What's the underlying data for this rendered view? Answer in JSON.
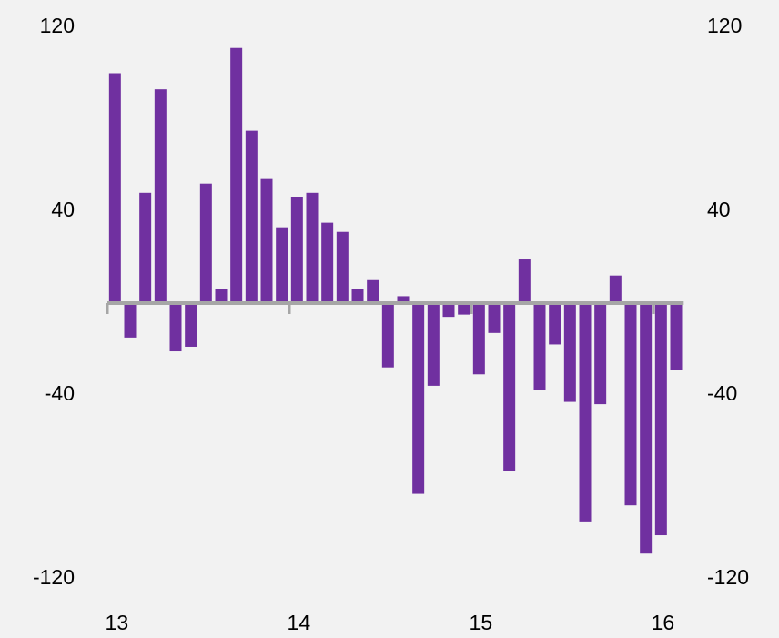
{
  "chart_data": {
    "type": "bar",
    "categories": [
      "13",
      null,
      null,
      null,
      null,
      null,
      null,
      null,
      null,
      null,
      null,
      null,
      "14",
      null,
      null,
      null,
      null,
      null,
      null,
      null,
      null,
      null,
      null,
      null,
      "15",
      null,
      null,
      null,
      null,
      null,
      null,
      null,
      null,
      null,
      null,
      null,
      "16",
      null
    ],
    "values": [
      100,
      -15,
      48,
      93,
      -21,
      -19,
      52,
      6,
      111,
      75,
      54,
      33,
      46,
      48,
      35,
      31,
      6,
      10,
      -28,
      3,
      -83,
      -36,
      -6,
      -5,
      -31,
      -13,
      -73,
      19,
      -38,
      -18,
      -43,
      -95,
      -44,
      12,
      -88,
      -109,
      -101,
      -29
    ],
    "color": "#7030a0",
    "ylim": [
      -120,
      120
    ],
    "yticks": [
      120,
      40,
      -40,
      -120
    ],
    "grid": false
  }
}
